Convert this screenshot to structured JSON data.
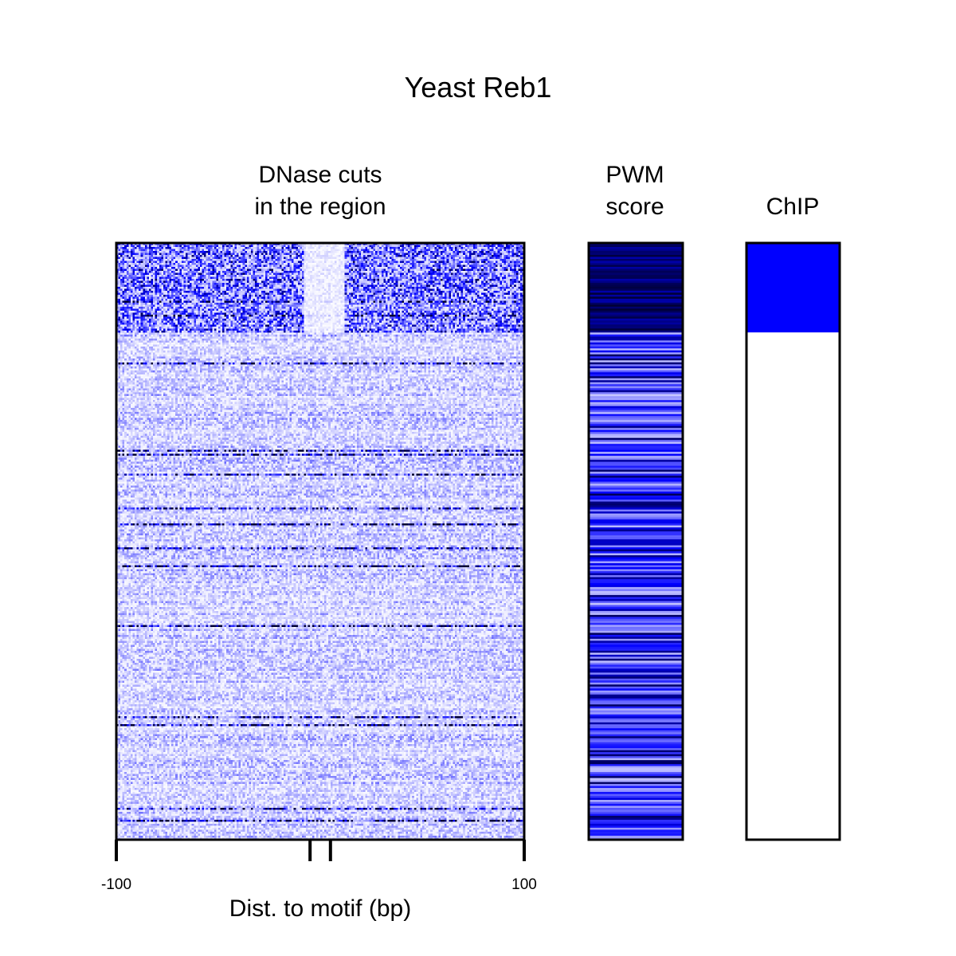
{
  "title": "Yeast Reb1",
  "panels": {
    "dnase": {
      "title_line1": "DNase cuts",
      "title_line2": "in the region"
    },
    "pwm": {
      "title_line1": "PWM",
      "title_line2": "score"
    },
    "chip": {
      "title_line1": "ChIP"
    }
  },
  "axis": {
    "xlabel": "Dist. to motif (bp)",
    "tick_left": "-100",
    "tick_right": "100"
  },
  "colors": {
    "accent": "#0000ff",
    "dark": "#00004d",
    "background": "#ffffff"
  },
  "chart_data": [
    {
      "type": "heatmap",
      "name_panel": "dnase",
      "title": "DNase cuts in the region",
      "xlabel": "Dist. to motif (bp)",
      "xlim": [
        -100,
        100
      ],
      "x_ticks": [
        -100,
        -5,
        5,
        100
      ],
      "x_tick_labels": [
        "-100",
        "",
        "",
        "100"
      ],
      "rows": 300,
      "cols": 200,
      "bound_rows_top_fraction": 0.15,
      "footprint_x_range": [
        -8,
        12
      ],
      "colormap": [
        "#ffffff",
        "#0000ff",
        "#000033"
      ]
    },
    {
      "type": "heatmap",
      "name_panel": "pwm",
      "title": "PWM score",
      "rows": 300,
      "cols": 1,
      "colormap": [
        "#ffffff",
        "#0000ff",
        "#000033"
      ]
    },
    {
      "type": "heatmap",
      "name_panel": "chip",
      "title": "ChIP",
      "rows": 2,
      "cols": 1,
      "values": [
        1,
        0
      ],
      "row_fractions": [
        0.15,
        0.85
      ],
      "colormap": [
        "#ffffff",
        "#0000ff"
      ]
    }
  ]
}
